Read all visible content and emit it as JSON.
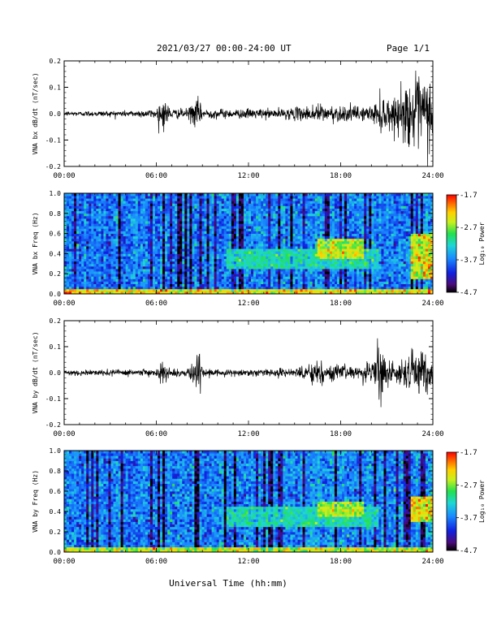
{
  "header": {
    "date_range": "2021/03/27  00:00-24:00 UT",
    "page_label": "Page 1/1"
  },
  "footer": {
    "xlabel": "Universal Time (hh:mm)"
  },
  "colorbar": {
    "label": "Log₁₀ Power",
    "ticks": [
      "-1.7",
      "-2.7",
      "-3.7",
      "-4.7"
    ],
    "range": [
      -4.7,
      -1.7
    ]
  },
  "chart_data": [
    {
      "type": "line",
      "ylabel": "VNA bx dB/dt (nT/sec)",
      "ylim": [
        -0.2,
        0.2
      ],
      "yticks": [
        "0.2",
        "0.1",
        "0.0",
        "-0.1",
        "-0.2"
      ],
      "xticks": [
        "00:00",
        "06:00",
        "12:00",
        "18:00",
        "24:00"
      ],
      "xlim_hours": [
        0,
        24
      ],
      "series": [
        {
          "x_hours": [
            0,
            1,
            2,
            3,
            4,
            5,
            6,
            6.4,
            7,
            8,
            8.7,
            9,
            10,
            11,
            12,
            13,
            14,
            15,
            16,
            16.4,
            17,
            18,
            19,
            20,
            20.5,
            21,
            21.5,
            22,
            22.5,
            23,
            23.5,
            24
          ],
          "amplitude": [
            0.01,
            0.01,
            0.012,
            0.012,
            0.013,
            0.015,
            0.02,
            0.07,
            0.02,
            0.02,
            0.065,
            0.02,
            0.02,
            0.018,
            0.02,
            0.02,
            0.02,
            0.025,
            0.03,
            0.055,
            0.03,
            0.035,
            0.03,
            0.03,
            0.07,
            0.08,
            0.06,
            0.1,
            0.14,
            0.15,
            0.17,
            0.12
          ]
        }
      ]
    },
    {
      "type": "heatmap",
      "ylabel": "VNA bx Freq (Hz)",
      "ylim": [
        0.0,
        1.0
      ],
      "yticks": [
        "1.0",
        "0.8",
        "0.6",
        "0.4",
        "0.2",
        "0.0"
      ],
      "xticks": [
        "00:00",
        "06:00",
        "12:00",
        "18:00",
        "24:00"
      ],
      "xlim_hours": [
        0,
        24
      ],
      "features": [
        {
          "hours": [
            10.5,
            20.5
          ],
          "freq": [
            0.25,
            0.45
          ],
          "level": -3.0
        },
        {
          "hours": [
            16.5,
            19.5
          ],
          "freq": [
            0.35,
            0.55
          ],
          "level": -2.3
        },
        {
          "hours": [
            22.5,
            24
          ],
          "freq": [
            0.15,
            0.6
          ],
          "level": -2.0
        },
        {
          "hours": [
            0,
            24
          ],
          "freq": [
            0.0,
            0.04
          ],
          "level": -2.0
        }
      ]
    },
    {
      "type": "line",
      "ylabel": "VNA by dB/dt (nT/sec)",
      "ylim": [
        -0.2,
        0.2
      ],
      "yticks": [
        "0.2",
        "0.1",
        "0.0",
        "-0.1",
        "-0.2"
      ],
      "xticks": [
        "00:00",
        "06:00",
        "12:00",
        "18:00",
        "24:00"
      ],
      "xlim_hours": [
        0,
        24
      ],
      "series": [
        {
          "x_hours": [
            0,
            1,
            2,
            3,
            4,
            5,
            6,
            6.4,
            7,
            8,
            8.7,
            9,
            10,
            11,
            12,
            13,
            14,
            15,
            16,
            16.4,
            17,
            18,
            19,
            20,
            20.5,
            21,
            21.5,
            22,
            22.5,
            23,
            23.5,
            24
          ],
          "amplitude": [
            0.012,
            0.012,
            0.012,
            0.012,
            0.012,
            0.013,
            0.015,
            0.05,
            0.015,
            0.015,
            0.11,
            0.015,
            0.015,
            0.015,
            0.015,
            0.015,
            0.018,
            0.022,
            0.03,
            0.07,
            0.035,
            0.03,
            0.025,
            0.04,
            0.12,
            0.05,
            0.03,
            0.06,
            0.09,
            0.08,
            0.1,
            0.05
          ]
        }
      ]
    },
    {
      "type": "heatmap",
      "ylabel": "VNA by Freq (Hz)",
      "ylim": [
        0.0,
        1.0
      ],
      "yticks": [
        "1.0",
        "0.8",
        "0.6",
        "0.4",
        "0.2",
        "0.0"
      ],
      "xticks": [
        "00:00",
        "06:00",
        "12:00",
        "18:00",
        "24:00"
      ],
      "xlim_hours": [
        0,
        24
      ],
      "features": [
        {
          "hours": [
            10.5,
            20.5
          ],
          "freq": [
            0.25,
            0.45
          ],
          "level": -3.0
        },
        {
          "hours": [
            16.5,
            19.5
          ],
          "freq": [
            0.35,
            0.5
          ],
          "level": -2.4
        },
        {
          "hours": [
            22.5,
            24
          ],
          "freq": [
            0.3,
            0.55
          ],
          "level": -2.0
        },
        {
          "hours": [
            0,
            24
          ],
          "freq": [
            0.0,
            0.04
          ],
          "level": -2.2
        }
      ]
    }
  ]
}
